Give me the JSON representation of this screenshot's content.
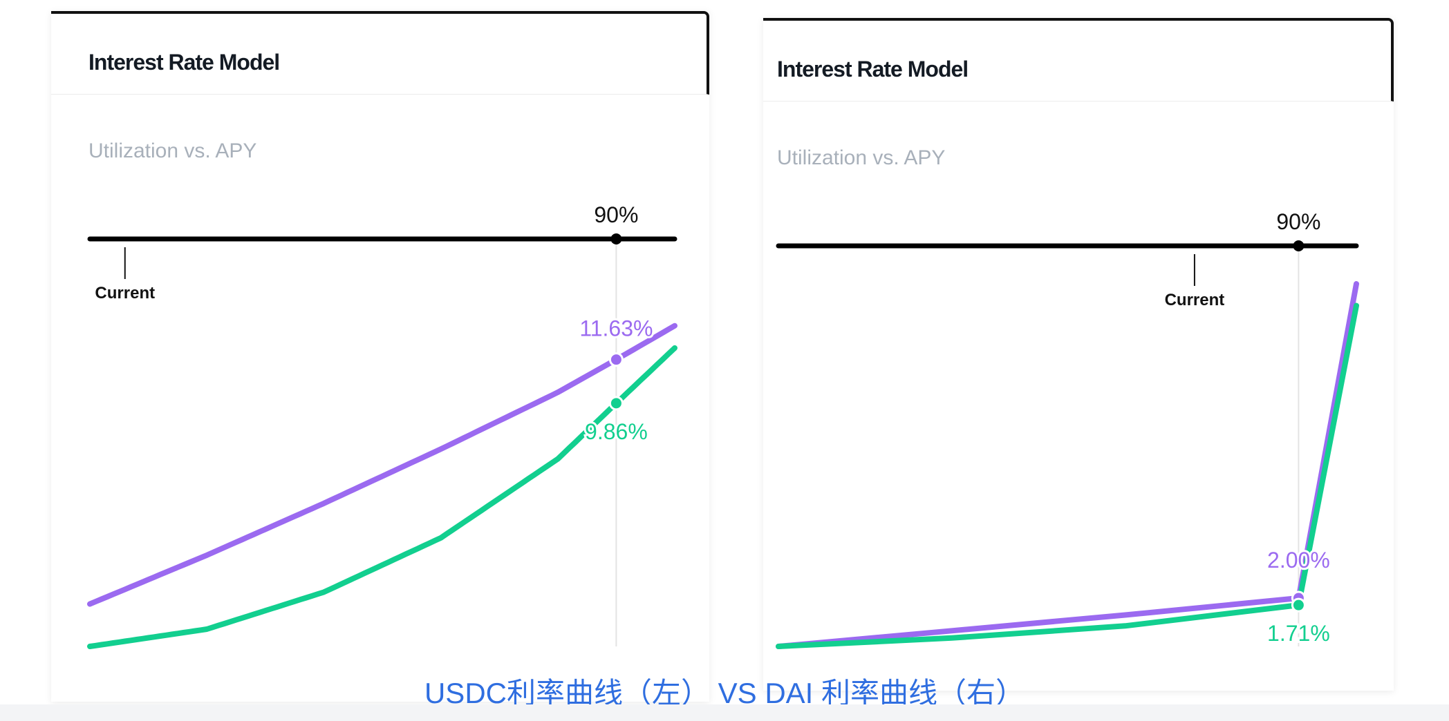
{
  "caption": "USDC利率曲线（左） VS DAI 利率曲线（右）",
  "colors": {
    "borrow": "#9b6af0",
    "supply": "#12cf8f",
    "track": "#000000",
    "caption": "#2f6ee0"
  },
  "panels": [
    {
      "title": "Interest Rate Model",
      "subtitle": "Utilization vs. APY",
      "kink_label": "90%",
      "current_label": "Current",
      "borrow_label": "11.63%",
      "supply_label": "9.86%"
    },
    {
      "title": "Interest Rate Model",
      "subtitle": "Utilization vs. APY",
      "kink_label": "90%",
      "current_label": "Current",
      "borrow_label": "2.00%",
      "supply_label": "1.71%"
    }
  ],
  "chart_data": [
    {
      "type": "line",
      "title": "Interest Rate Model",
      "subtitle": "Utilization vs. APY",
      "xlabel": "",
      "ylabel": "",
      "xlim": [
        0,
        100
      ],
      "ylim": [
        0,
        14
      ],
      "kink_utilization": 90,
      "current_utilization": 6,
      "series": [
        {
          "x": [
            0,
            20,
            40,
            60,
            80,
            90,
            100
          ],
          "values": [
            1.72,
            3.7,
            5.8,
            8.0,
            10.3,
            11.63,
            13.0
          ]
        },
        {
          "x": [
            0,
            20,
            40,
            60,
            80,
            90,
            100
          ],
          "values": [
            0.0,
            0.7,
            2.2,
            4.4,
            7.6,
            9.86,
            12.1
          ]
        }
      ]
    },
    {
      "type": "line",
      "title": "Interest Rate Model",
      "subtitle": "Utilization vs. APY",
      "xlabel": "",
      "ylabel": "",
      "xlim": [
        0,
        100
      ],
      "ylim": [
        0,
        14
      ],
      "kink_utilization": 90,
      "current_utilization": 72,
      "series": [
        {
          "x": [
            0,
            30,
            60,
            90,
            100
          ],
          "values": [
            0.0,
            0.65,
            1.3,
            2.0,
            15.0
          ]
        },
        {
          "x": [
            0,
            30,
            60,
            90,
            100
          ],
          "values": [
            0.0,
            0.35,
            0.85,
            1.71,
            14.1
          ]
        }
      ]
    }
  ]
}
